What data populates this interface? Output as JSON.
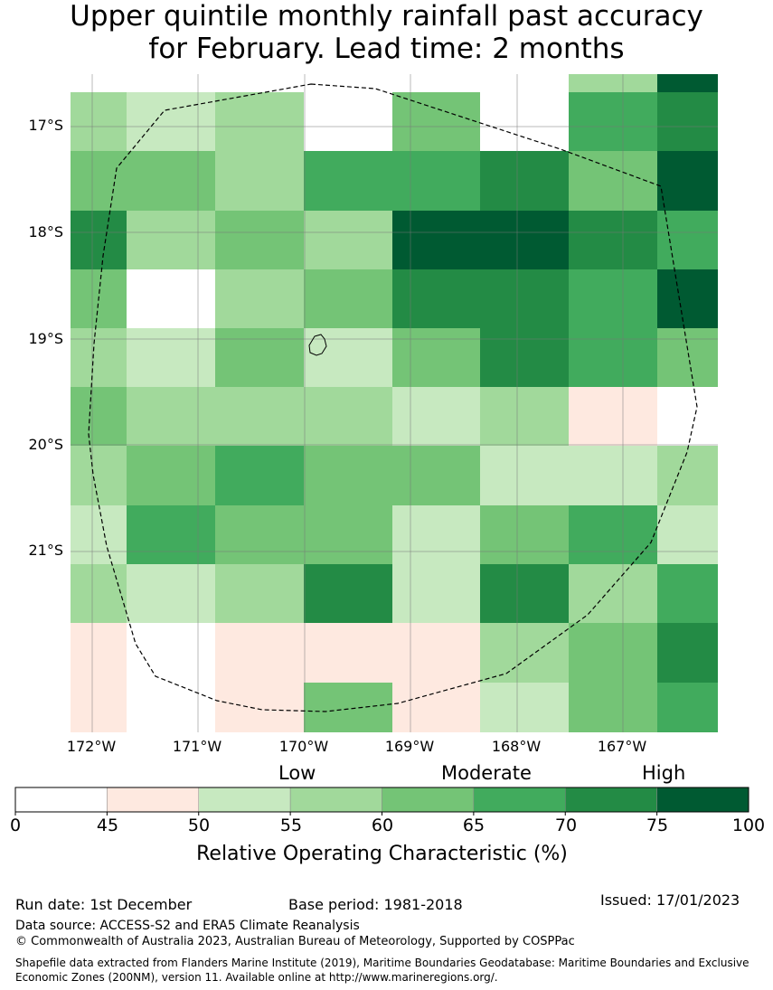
{
  "title": {
    "line1": "Upper quintile monthly rainfall past accuracy",
    "line2": "for February. Lead time: 2 months"
  },
  "map": {
    "lat_labels": [
      "17°S",
      "18°S",
      "19°S",
      "20°S",
      "21°S"
    ],
    "lon_labels": [
      "172°W",
      "171°W",
      "170°W",
      "169°W",
      "168°W",
      "167°W"
    ],
    "grid_values": [
      [
        null,
        null,
        null,
        null,
        null,
        null,
        57,
        78
      ],
      [
        57,
        52,
        57,
        40,
        62,
        40,
        68,
        73
      ],
      [
        62,
        62,
        57,
        68,
        68,
        73,
        62,
        78
      ],
      [
        73,
        57,
        62,
        57,
        78,
        78,
        73,
        68
      ],
      [
        62,
        40,
        57,
        62,
        73,
        73,
        68,
        78
      ],
      [
        57,
        52,
        62,
        52,
        62,
        73,
        68,
        62
      ],
      [
        62,
        57,
        57,
        57,
        52,
        57,
        47,
        40
      ],
      [
        57,
        62,
        68,
        62,
        62,
        52,
        52,
        57
      ],
      [
        52,
        68,
        62,
        62,
        52,
        62,
        68,
        52
      ],
      [
        57,
        52,
        57,
        73,
        52,
        73,
        57,
        68
      ],
      [
        47,
        40,
        47,
        47,
        47,
        57,
        62,
        73
      ],
      [
        47,
        40,
        47,
        62,
        47,
        52,
        62,
        68
      ]
    ]
  },
  "colorbar": {
    "category_low": "Low",
    "category_moderate": "Moderate",
    "category_high": "High",
    "ticks": [
      "0",
      "45",
      "50",
      "55",
      "60",
      "65",
      "70",
      "75",
      "100"
    ],
    "colors": [
      "#ffffff",
      "#fee9e0",
      "#c7e9c0",
      "#a1d99b",
      "#74c476",
      "#41ab5d",
      "#238b45",
      "#005a32"
    ],
    "axis_label": "Relative Operating Characteristic (%)"
  },
  "footer": {
    "run_date": "Run date: 1st December",
    "base_period": "Base period: 1981-2018",
    "issued": "Issued: 17/01/2023",
    "data_source": "Data source: ACCESS-S2 and ERA5 Climate Reanalysis",
    "copyright": "© Commonwealth of Australia 2023, Australian Bureau of Meteorology, Supported by COSPPac",
    "shapefile_line1": "Shapefile data extracted from Flanders Marine Institute (2019), Maritime Boundaries Geodatabase: Maritime Boundaries and Exclusive",
    "shapefile_line2": "Economic Zones (200NM), version 11. Available online at http://www.marineregions.org/."
  }
}
